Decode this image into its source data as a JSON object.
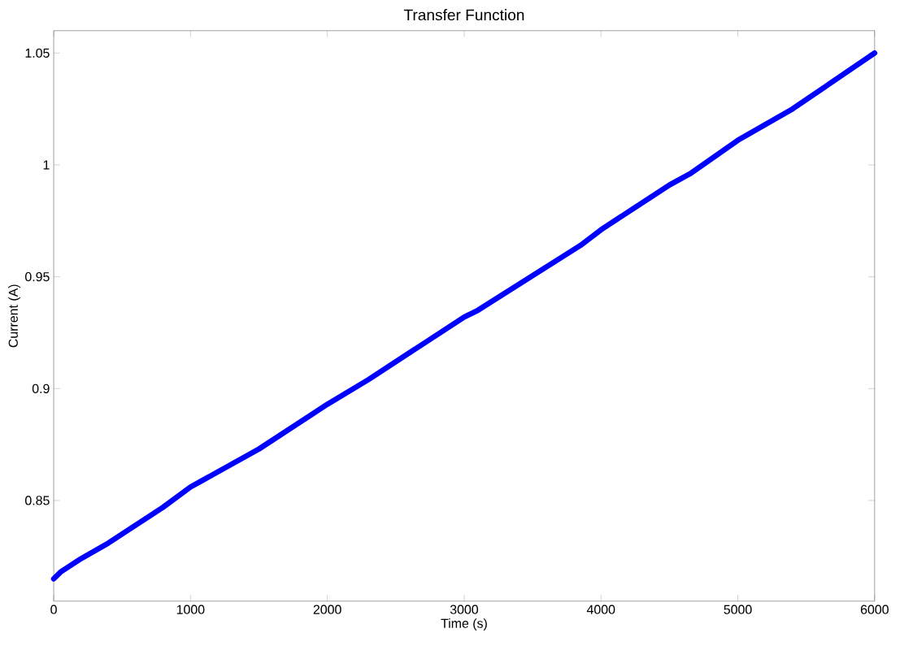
{
  "chart_data": {
    "type": "line",
    "title": "Transfer Function",
    "xlabel": "Time (s)",
    "ylabel": "Current (A)",
    "x": [
      0,
      50,
      100,
      200,
      400,
      800,
      1000,
      1500,
      2000,
      2300,
      3000,
      3100,
      3850,
      4000,
      4500,
      4650,
      5000,
      5400,
      6000
    ],
    "series": [
      {
        "color": "#0000ff",
        "values": [
          0.815,
          0.818,
          0.82,
          0.824,
          0.831,
          0.847,
          0.856,
          0.873,
          0.893,
          0.904,
          0.932,
          0.935,
          0.964,
          0.971,
          0.991,
          0.996,
          1.011,
          1.025,
          1.05
        ]
      }
    ],
    "xlim": [
      0,
      6000
    ],
    "ylim": [
      0.805,
      1.06
    ],
    "xticks": [
      0,
      1000,
      2000,
      3000,
      4000,
      5000,
      6000
    ],
    "yticks": [
      0.85,
      0.9,
      0.95,
      1,
      1.05
    ],
    "marker": "none",
    "line_style": "solid"
  }
}
